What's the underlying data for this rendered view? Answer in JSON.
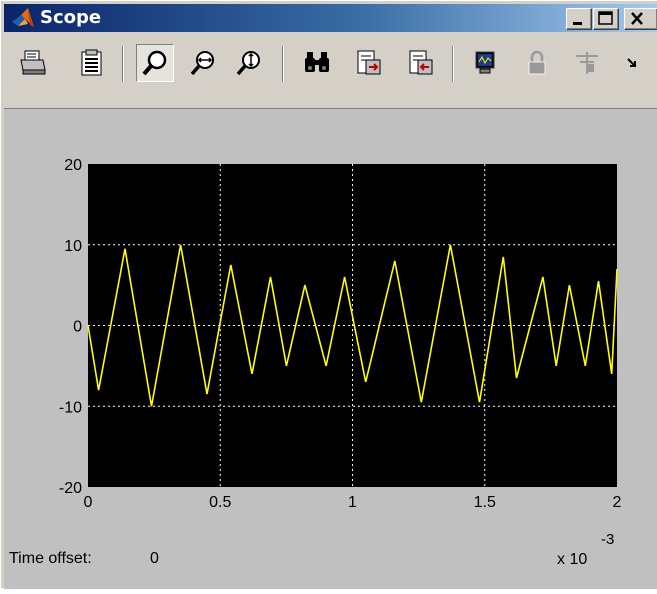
{
  "window": {
    "title": "Scope",
    "controls": [
      "minimize",
      "maximize",
      "close"
    ]
  },
  "toolbar": {
    "buttons": [
      {
        "name": "print",
        "icon": "printer-icon"
      },
      {
        "name": "parameters",
        "icon": "parameters-icon"
      },
      {
        "name": "zoom",
        "icon": "zoom-icon",
        "pressed": true
      },
      {
        "name": "zoom-x-axis",
        "icon": "zoom-x-icon"
      },
      {
        "name": "zoom-y-axis",
        "icon": "zoom-y-icon"
      },
      {
        "name": "autoscale",
        "icon": "binoculars-icon"
      },
      {
        "name": "save-axes-settings",
        "icon": "save-axes-icon"
      },
      {
        "name": "restore-axes-settings",
        "icon": "restore-axes-icon"
      },
      {
        "name": "floating-scope",
        "icon": "floating-scope-icon"
      },
      {
        "name": "lock-axes",
        "icon": "lock-icon",
        "disabled": true
      },
      {
        "name": "signal-selector",
        "icon": "signal-selector-icon",
        "disabled": true
      },
      {
        "name": "more",
        "icon": "overflow-arrow-icon"
      }
    ]
  },
  "footer": {
    "time_offset_label": "Time offset:",
    "time_offset_value": "0",
    "x_multiplier": "x 10",
    "x_exponent": "-3"
  },
  "colors": {
    "plot_background": "#000000",
    "trace": "#ffff00",
    "grid": "#ffffff",
    "figure_background": "#c0c0c0"
  },
  "chart_data": {
    "type": "line",
    "title": "",
    "xlabel": "",
    "ylabel": "",
    "xlim": [
      0,
      2
    ],
    "ylim": [
      -20,
      20
    ],
    "x_ticks": [
      "0",
      "0.5",
      "1",
      "1.5",
      "2"
    ],
    "y_ticks": [
      "20",
      "10",
      "0",
      "-10",
      "-20"
    ],
    "grid": true,
    "series": [
      {
        "x": [
          0,
          0.04,
          0.14,
          0.24,
          0.35,
          0.45,
          0.54,
          0.62,
          0.69,
          0.75,
          0.82,
          0.9,
          0.97,
          1.05,
          1.16,
          1.26,
          1.37,
          1.48,
          1.57,
          1.62,
          1.72,
          1.77,
          1.82,
          1.88,
          1.93,
          1.98,
          2.0
        ],
        "y": [
          0,
          -8,
          9.5,
          -10,
          10,
          -8.5,
          7.5,
          -6,
          6,
          -5,
          5,
          -5,
          6,
          -7,
          8,
          -9.5,
          10,
          -9.5,
          8.5,
          -6.5,
          6,
          -5,
          5,
          -5,
          5.5,
          -6,
          7
        ]
      }
    ]
  }
}
